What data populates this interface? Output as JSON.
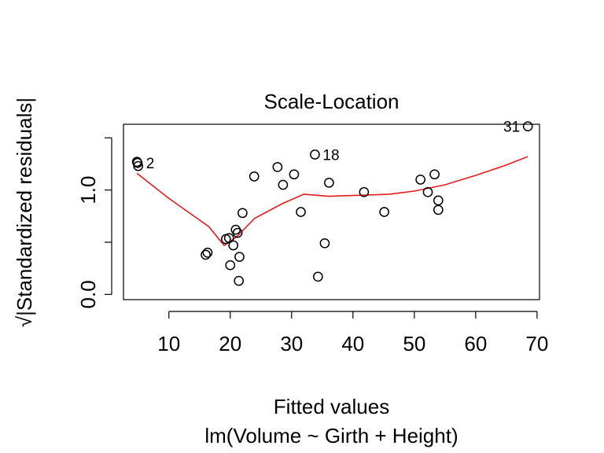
{
  "chart_data": {
    "type": "scatter",
    "title": "Scale-Location",
    "xlabel": "Fitted values",
    "subtitle": "lm(Volume ~ Girth + Height)",
    "ylabel_radical": "√",
    "ylabel": "|Standardized residuals|",
    "xlim": [
      2.6,
      70.4
    ],
    "ylim": [
      -0.05,
      1.63
    ],
    "x_ticks": [
      10,
      20,
      30,
      40,
      50,
      60,
      70
    ],
    "y_ticks": [
      0.0,
      0.5,
      1.0,
      1.5
    ],
    "y_tick_labels": [
      "0.0",
      "",
      "1.0",
      ""
    ],
    "grid": false,
    "point_color": "#000000",
    "line_color": "#E41A1C",
    "points": {
      "x": [
        4.8,
        4.9,
        5.0,
        16.0,
        16.3,
        19.3,
        19.8,
        20.0,
        20.5,
        20.9,
        21.2,
        21.4,
        21.5,
        22.0,
        23.9,
        27.7,
        28.6,
        30.4,
        31.5,
        33.8,
        34.3,
        35.4,
        36.1,
        41.8,
        45.1,
        51.0,
        52.2,
        53.3,
        53.9,
        53.9,
        68.5
      ],
      "y": [
        1.27,
        1.26,
        1.23,
        0.38,
        0.4,
        0.53,
        0.54,
        0.28,
        0.47,
        0.62,
        0.59,
        0.13,
        0.36,
        0.78,
        1.13,
        1.22,
        1.05,
        1.15,
        0.79,
        1.34,
        0.17,
        0.49,
        1.07,
        0.98,
        0.79,
        1.1,
        0.98,
        1.15,
        0.9,
        0.81,
        1.61
      ]
    },
    "point_labels": [
      {
        "text": "2",
        "x": 5.0,
        "y": 1.26
      },
      {
        "text": "18",
        "x": 33.8,
        "y": 1.34
      },
      {
        "text": "31",
        "x": 68.5,
        "y": 1.61
      }
    ],
    "smooth_line": {
      "x": [
        4.8,
        10.0,
        16.5,
        19.0,
        21.0,
        24.0,
        28.5,
        32.0,
        36.0,
        41.0,
        46.0,
        50.0,
        55.0,
        60.0,
        65.0,
        68.5
      ],
      "y": [
        1.16,
        0.92,
        0.65,
        0.47,
        0.55,
        0.73,
        0.87,
        0.96,
        0.94,
        0.95,
        0.96,
        0.99,
        1.05,
        1.14,
        1.24,
        1.32
      ]
    }
  }
}
